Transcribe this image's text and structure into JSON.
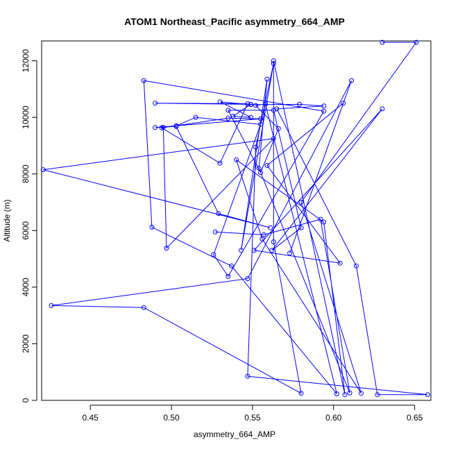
{
  "chart_data": {
    "type": "line",
    "title": "ATOM1 Northeast_Pacific asymmetry_664_AMP",
    "xlabel": "asymmetry_664_AMP",
    "ylabel": "Altitude (m)",
    "xlim": [
      0.42,
      0.66
    ],
    "ylim": [
      0,
      12700
    ],
    "x_ticks": [
      0.45,
      0.5,
      0.55,
      0.6,
      0.65
    ],
    "x_tick_labels": [
      "0.45",
      "0.50",
      "0.55",
      "0.60",
      "0.65"
    ],
    "y_ticks": [
      0,
      2000,
      4000,
      6000,
      8000,
      10000,
      12000
    ],
    "y_tick_labels": [
      "0",
      "2000",
      "4000",
      "6000",
      "8000",
      "10000",
      "12000"
    ],
    "grid": false,
    "markers": "open-circle",
    "series": [
      {
        "color": "#0000ff",
        "points": [
          [
            0.63,
            12650
          ],
          [
            0.651,
            12650
          ],
          [
            0.58,
            7000
          ],
          [
            0.617,
            250
          ],
          [
            0.556,
            5700
          ],
          [
            0.54,
            8500
          ],
          [
            0.594,
            6300
          ],
          [
            0.607,
            200
          ],
          [
            0.563,
            12000
          ],
          [
            0.563,
            5600
          ],
          [
            0.58,
            250
          ],
          [
            0.483,
            3280
          ],
          [
            0.426,
            3350
          ],
          [
            0.547,
            4300
          ],
          [
            0.611,
            11300
          ],
          [
            0.573,
            5200
          ],
          [
            0.606,
            10500
          ],
          [
            0.559,
            8300
          ],
          [
            0.604,
            4850
          ],
          [
            0.551,
            5300
          ],
          [
            0.63,
            10300
          ],
          [
            0.562,
            5300
          ],
          [
            0.58,
            6100
          ],
          [
            0.563,
            10250
          ],
          [
            0.535,
            10250
          ],
          [
            0.555,
            8050
          ],
          [
            0.566,
            9600
          ],
          [
            0.552,
            10420
          ],
          [
            0.558,
            10470
          ],
          [
            0.602,
            230
          ],
          [
            0.537,
            4750
          ],
          [
            0.488,
            6120
          ],
          [
            0.483,
            11300
          ],
          [
            0.594,
            10220
          ],
          [
            0.535,
            4380
          ],
          [
            0.526,
            5150
          ],
          [
            0.555,
            9750
          ],
          [
            0.515,
            10000
          ],
          [
            0.503,
            9700
          ],
          [
            0.495,
            9650
          ],
          [
            0.497,
            5380
          ],
          [
            0.563,
            9250
          ],
          [
            0.421,
            8150
          ],
          [
            0.561,
            6100
          ],
          [
            0.529,
            6600
          ],
          [
            0.503,
            9680
          ],
          [
            0.49,
            9640
          ],
          [
            0.555,
            9950
          ],
          [
            0.535,
            9970
          ],
          [
            0.494,
            9630
          ],
          [
            0.53,
            8380
          ],
          [
            0.547,
            10480
          ],
          [
            0.49,
            10500
          ],
          [
            0.549,
            10460
          ],
          [
            0.538,
            10040
          ],
          [
            0.549,
            10000
          ],
          [
            0.53,
            10550
          ],
          [
            0.549,
            10450
          ],
          [
            0.579,
            10460
          ],
          [
            0.594,
            10400
          ],
          [
            0.565,
            10300
          ],
          [
            0.614,
            4750
          ],
          [
            0.627,
            200
          ],
          [
            0.658,
            200
          ],
          [
            0.547,
            850
          ],
          [
            0.552,
            8950
          ],
          [
            0.563,
            11900
          ],
          [
            0.543,
            5300
          ],
          [
            0.559,
            11350
          ],
          [
            0.554,
            8200
          ],
          [
            0.61,
            260
          ],
          [
            0.592,
            6400
          ],
          [
            0.557,
            5850
          ],
          [
            0.527,
            5950
          ]
        ]
      }
    ]
  }
}
